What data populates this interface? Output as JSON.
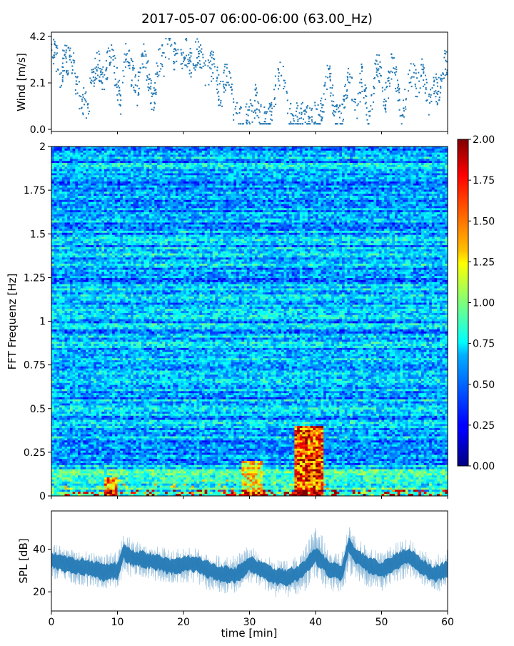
{
  "title": "2017-05-07 06:00-06:00 (63.00_Hz)",
  "colors": {
    "wind": "#1f77b4",
    "spl": "#1f77b4"
  },
  "chart_data": [
    {
      "type": "scatter",
      "ylabel": "Wind [m/s]",
      "xlim": [
        0,
        60
      ],
      "ylim": [
        0,
        4.2
      ],
      "yticks": [
        "0.0",
        "2.1",
        "4.2"
      ],
      "x": [
        0,
        0.5,
        1,
        1.5,
        2,
        2.5,
        3,
        3.5,
        4,
        4.5,
        5,
        5.5,
        6,
        6.5,
        7,
        7.5,
        8,
        8.5,
        9,
        9.5,
        10,
        10.5,
        11,
        11.5,
        12,
        12.5,
        13,
        13.5,
        14,
        14.5,
        15,
        15.5,
        16,
        16.5,
        17,
        17.5,
        18,
        18.5,
        19,
        19.5,
        20,
        20.5,
        21,
        21.5,
        22,
        22.5,
        23,
        23.5,
        24,
        24.5,
        25,
        25.5,
        26,
        26.5,
        27,
        27.5,
        28,
        28.5,
        29,
        29.5,
        30,
        30.5,
        31,
        31.5,
        32,
        32.5,
        33,
        33.5,
        34,
        34.5,
        35,
        35.5,
        36,
        36.5,
        37,
        37.5,
        38,
        38.5,
        39,
        39.5,
        40,
        40.5,
        41,
        41.5,
        42,
        42.5,
        43,
        43.5,
        44,
        44.5,
        45,
        45.5,
        46,
        46.5,
        47,
        47.5,
        48,
        48.5,
        49,
        49.5,
        50,
        50.5,
        51,
        51.5,
        52,
        52.5,
        53,
        53.5,
        54,
        54.5,
        55,
        55.5,
        56,
        56.5,
        57,
        57.5,
        58,
        58.5,
        59,
        59.5,
        60
      ],
      "y": [
        3.3,
        3.5,
        3.0,
        2.4,
        3.4,
        3.1,
        3.2,
        2.6,
        1.8,
        1.2,
        1.4,
        0.7,
        2.0,
        2.4,
        3.0,
        2.6,
        1.9,
        3.0,
        3.7,
        2.8,
        2.0,
        1.3,
        3.1,
        3.5,
        2.6,
        2.4,
        1.6,
        2.9,
        3.4,
        2.7,
        1.8,
        1.2,
        2.6,
        3.3,
        3.0,
        3.8,
        3.9,
        3.4,
        3.0,
        2.8,
        3.3,
        3.6,
        3.1,
        2.9,
        3.6,
        3.3,
        2.8,
        2.3,
        2.7,
        3.0,
        2.5,
        1.4,
        1.8,
        2.6,
        2.4,
        1.0,
        0.6,
        0.5,
        0.4,
        0.6,
        0.7,
        0.8,
        1.5,
        0.6,
        0.4,
        0.3,
        0.6,
        1.2,
        1.8,
        2.6,
        2.4,
        1.5,
        0.6,
        0.5,
        0.6,
        0.4,
        0.5,
        0.6,
        0.3,
        0.4,
        0.6,
        0.4,
        0.8,
        1.8,
        2.8,
        1.6,
        0.5,
        0.4,
        0.6,
        1.4,
        2.5,
        2.0,
        0.7,
        1.4,
        2.4,
        1.6,
        0.5,
        1.0,
        2.4,
        2.9,
        2.3,
        1.2,
        2.0,
        2.8,
        2.7,
        1.6,
        0.8,
        1.2,
        2.2,
        2.4,
        2.3,
        1.7,
        2.8,
        2.2,
        1.4,
        1.1,
        2.2,
        1.6,
        2.1,
        3.0,
        3.2
      ]
    },
    {
      "type": "heatmap",
      "ylabel": "FFT Frequenz [Hz]",
      "xlim": [
        0,
        60
      ],
      "ylim": [
        0,
        2
      ],
      "yticks": [
        "0",
        "0.25",
        "0.5",
        "0.75",
        "1",
        "1.25",
        "1.5",
        "1.75",
        "2"
      ],
      "colorbar": {
        "range": [
          0,
          2
        ],
        "ticks": [
          "0.00",
          "0.25",
          "0.50",
          "0.75",
          "1.00",
          "1.25",
          "1.50",
          "1.75",
          "2.00"
        ],
        "colormap": "jet"
      },
      "description_values": {
        "baseline_intensity": 0.3,
        "hot_regions": [
          {
            "x_range": [
              37,
              41
            ],
            "freq_range": [
              0,
              0.4
            ],
            "intensity": 0.9
          },
          {
            "x_range": [
              29,
              32
            ],
            "freq_range": [
              0,
              0.2
            ],
            "intensity": 0.7
          },
          {
            "x_range": [
              8,
              10
            ],
            "freq_range": [
              0,
              0.1
            ],
            "intensity": 0.8
          }
        ]
      }
    },
    {
      "type": "area",
      "ylabel": "SPL [dB]",
      "xlabel": "time [min]",
      "xlim": [
        0,
        60
      ],
      "ylim": [
        11,
        58
      ],
      "xticks": [
        "0",
        "10",
        "20",
        "30",
        "40",
        "50",
        "60"
      ],
      "yticks": [
        "20",
        "40"
      ],
      "x": [
        0,
        2,
        4,
        6,
        8,
        10,
        11,
        12,
        14,
        16,
        18,
        20,
        22,
        24,
        26,
        28,
        30,
        32,
        34,
        36,
        38,
        40,
        42,
        44,
        45,
        46,
        48,
        50,
        52,
        54,
        56,
        58,
        60
      ],
      "mean": [
        35,
        33,
        32,
        31,
        29,
        30,
        39,
        36,
        35,
        34,
        32,
        33,
        33,
        30,
        28,
        28,
        33,
        30,
        27,
        27,
        30,
        37,
        31,
        29,
        42,
        37,
        33,
        30,
        34,
        37,
        32,
        28,
        31
      ],
      "lower": [
        26,
        25,
        23,
        22,
        21,
        22,
        28,
        27,
        26,
        25,
        23,
        24,
        24,
        20,
        19,
        18,
        24,
        21,
        17,
        17,
        19,
        26,
        20,
        19,
        28,
        26,
        22,
        20,
        24,
        27,
        22,
        19,
        22
      ],
      "upper": [
        44,
        41,
        40,
        39,
        38,
        39,
        48,
        45,
        43,
        42,
        40,
        41,
        41,
        38,
        37,
        37,
        42,
        38,
        35,
        35,
        38,
        55,
        39,
        38,
        52,
        46,
        41,
        39,
        43,
        46,
        40,
        37,
        40
      ]
    }
  ]
}
